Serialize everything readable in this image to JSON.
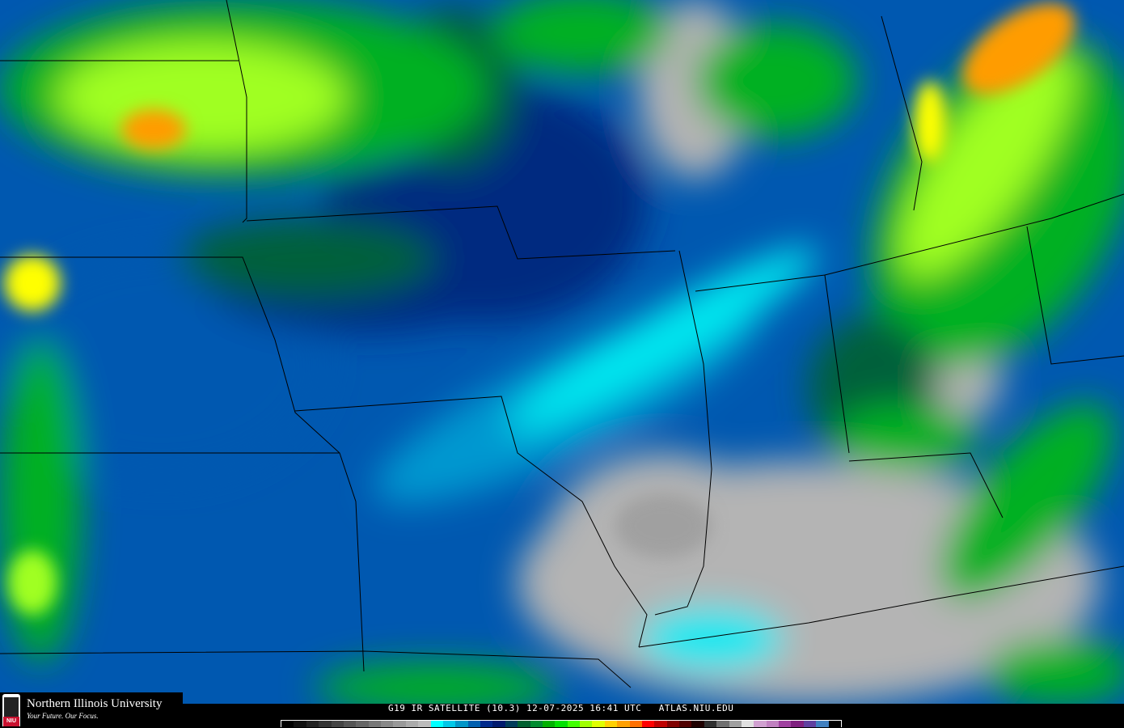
{
  "caption": "G19 IR SATELLITE (10.3) 12-07-2025 16:41 UTC   ATLAS.NIU.EDU",
  "logo": {
    "name": "Northern Illinois University",
    "tagline": "Your Future. Our Focus.",
    "badge": "NIU"
  },
  "colorbar": [
    "#000000",
    "#111111",
    "#222222",
    "#333333",
    "#444444",
    "#555555",
    "#666666",
    "#777777",
    "#888888",
    "#999999",
    "#aaaaaa",
    "#bbbbbb",
    "#00ffff",
    "#00c8e8",
    "#0096c8",
    "#0060b0",
    "#002a8c",
    "#001a6e",
    "#003c5a",
    "#006030",
    "#008c30",
    "#00b000",
    "#00e000",
    "#40ff00",
    "#a0ff00",
    "#e0ff00",
    "#ffd000",
    "#ffa000",
    "#ff7000",
    "#ff0000",
    "#c00000",
    "#800000",
    "#500000",
    "#200000",
    "#303030",
    "#707070",
    "#a0a0a0",
    "#e0e0e0",
    "#d0a0d0",
    "#c080c0",
    "#a040a0",
    "#802080",
    "#6040a0",
    "#4080c0",
    "#000000"
  ],
  "colors": {
    "clear": "#b4b4b4",
    "cyan": "#00e8f0",
    "light_blue": "#0098d0",
    "blue": "#0058b0",
    "navy": "#002a80",
    "dark_green": "#00603a",
    "green": "#00b020",
    "lime": "#a0ff20",
    "yellow": "#ffff00",
    "orange": "#ff9c00"
  }
}
